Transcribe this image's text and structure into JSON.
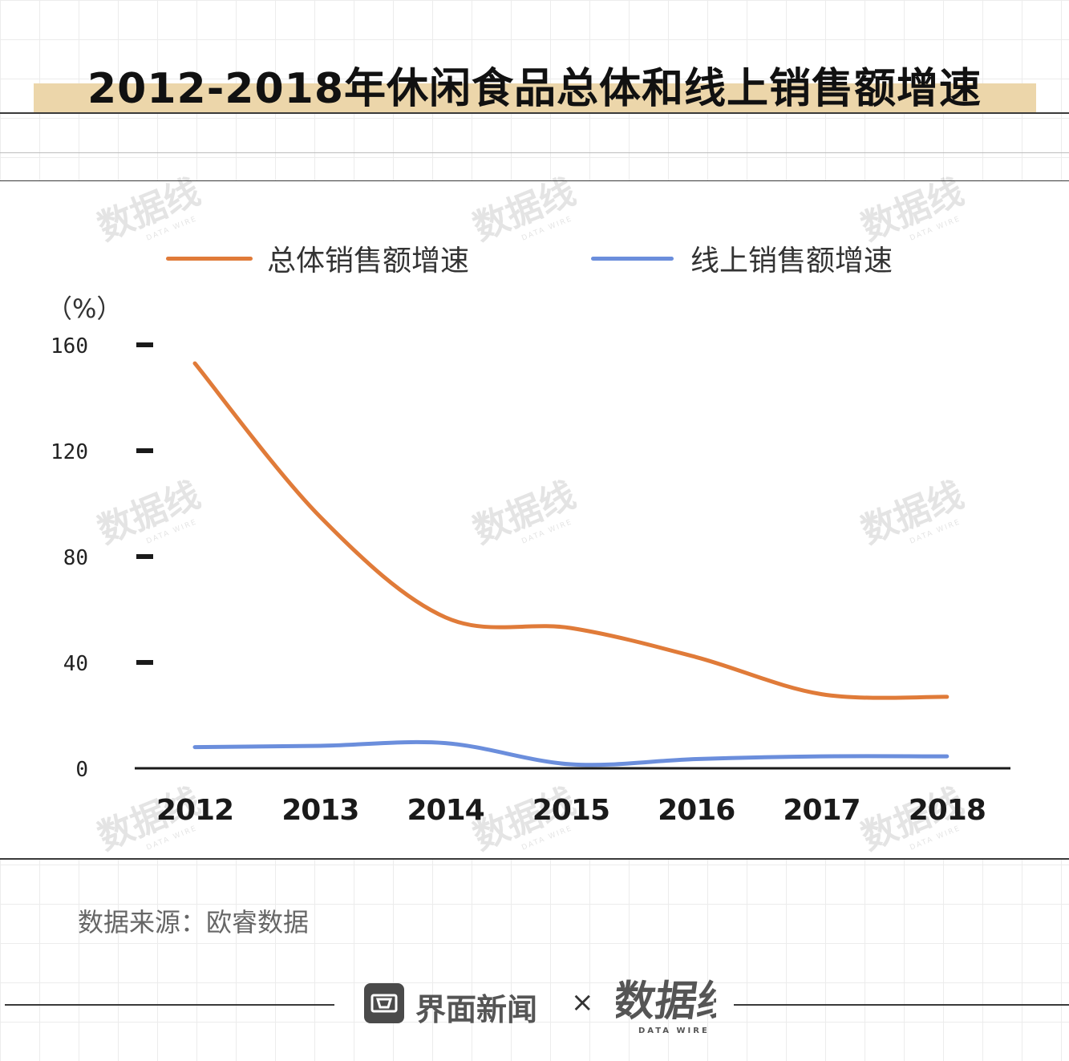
{
  "title": "2012-2018年休闲食品总体和线上销售额增速",
  "chart_data": {
    "type": "line",
    "categories": [
      "2012",
      "2013",
      "2014",
      "2015",
      "2016",
      "2017",
      "2018"
    ],
    "series": [
      {
        "name": "总体销售额增速",
        "color": "#e07b39",
        "values": [
          153,
          95,
          57,
          53,
          42,
          28,
          27
        ]
      },
      {
        "name": "线上销售额增速",
        "color": "#6b8edc",
        "values": [
          8,
          8.5,
          9.5,
          1.5,
          3.5,
          4.5,
          4.5
        ]
      }
    ],
    "ylabel": "（%）",
    "yticks": [
      "160",
      "120",
      "80",
      "40",
      "0"
    ],
    "ylim": [
      0,
      160
    ],
    "grid": false,
    "legend_position": "top"
  },
  "source": "数据来源：欧睿数据",
  "footer": {
    "brand": "界面新闻",
    "separator": "×",
    "partner_logo_text": "数据线",
    "partner_logo_sub": "DATA WIRE"
  },
  "watermark": {
    "text": "数据线",
    "sub": "DATA WIRE"
  }
}
